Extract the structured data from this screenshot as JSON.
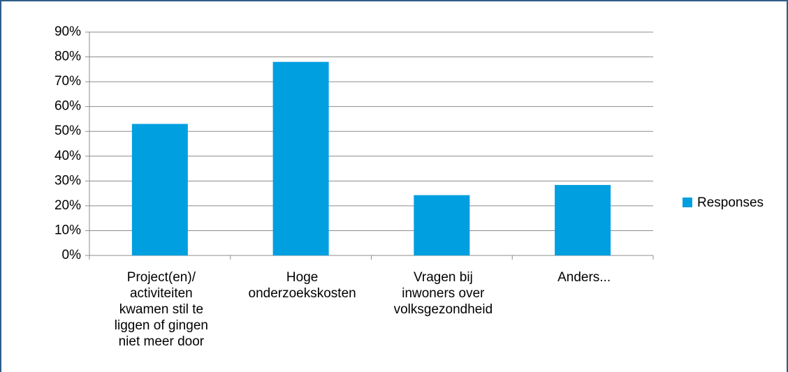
{
  "chart_data": {
    "type": "bar",
    "categories": [
      "Project(en)/\nactiviteiten\nkwamen stil te\nliggen of gingen\nniet meer door",
      "Hoge\nonderzoekskosten",
      "Vragen bij\ninwoners over\nvolksgezondheid",
      "Anders..."
    ],
    "series": [
      {
        "name": "Responses",
        "color": "#009fe0",
        "values": [
          53,
          78,
          24.3,
          28.4
        ]
      }
    ],
    "ylim": [
      0,
      90
    ],
    "yticks": [
      {
        "value": 0,
        "label": "0%"
      },
      {
        "value": 10,
        "label": "10%"
      },
      {
        "value": 20,
        "label": "20%"
      },
      {
        "value": 30,
        "label": "30%"
      },
      {
        "value": 40,
        "label": "40%"
      },
      {
        "value": 50,
        "label": "50%"
      },
      {
        "value": 60,
        "label": "60%"
      },
      {
        "value": 70,
        "label": "70%"
      },
      {
        "value": 80,
        "label": "80%"
      },
      {
        "value": 90,
        "label": "90%"
      }
    ],
    "grid": true,
    "legend": "right"
  }
}
